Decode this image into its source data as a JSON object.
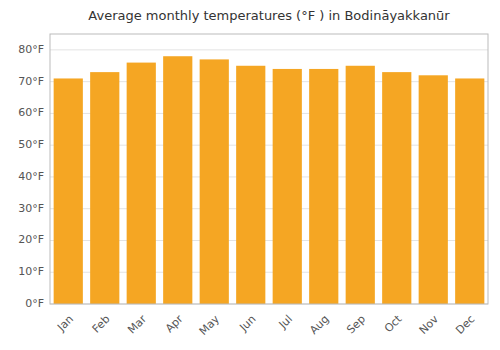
{
  "chart_data": {
    "type": "bar",
    "title": "Average monthly temperatures (°F ) in Bodināyakkanūr",
    "categories": [
      "Jan",
      "Feb",
      "Mar",
      "Apr",
      "May",
      "Jun",
      "Jul",
      "Aug",
      "Sep",
      "Oct",
      "Nov",
      "Dec"
    ],
    "values": [
      71,
      73,
      76,
      78,
      77,
      75,
      74,
      74,
      75,
      73,
      72,
      71
    ],
    "color": "#F5A623",
    "ylim": [
      0,
      85
    ],
    "yticks": [
      {
        "value": 0,
        "label": "0°F"
      },
      {
        "value": 10,
        "label": "10°F"
      },
      {
        "value": 20,
        "label": "20°F"
      },
      {
        "value": 30,
        "label": "30°F"
      },
      {
        "value": 40,
        "label": "40°F"
      },
      {
        "value": 50,
        "label": "50°F"
      },
      {
        "value": 60,
        "label": "60°F"
      },
      {
        "value": 70,
        "label": "70°F"
      },
      {
        "value": 80,
        "label": "80°F"
      }
    ],
    "grid": true
  }
}
